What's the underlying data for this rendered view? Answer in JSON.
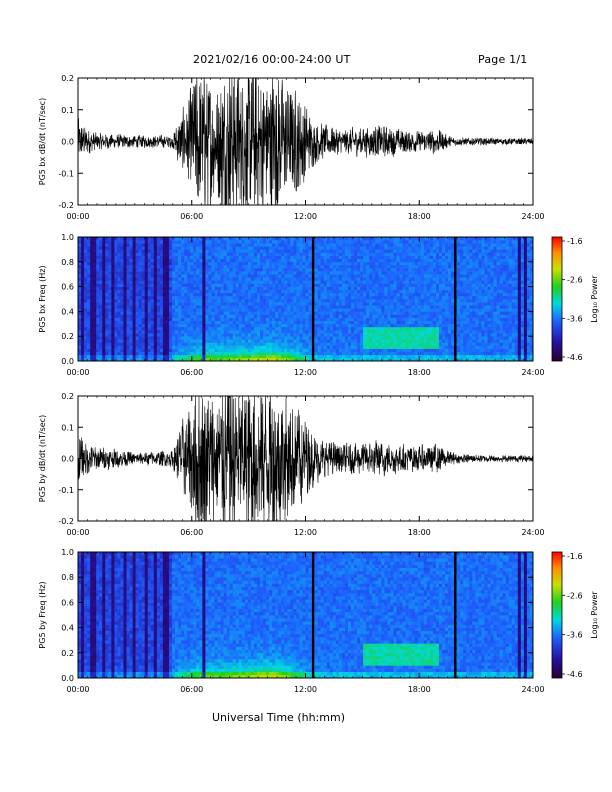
{
  "header": {
    "title": "2021/02/16  00:00-24:00 UT",
    "page": "Page 1/1"
  },
  "xaxis_title": "Universal Time (hh:mm)",
  "colorbar": {
    "label": "Log₁₀ Power",
    "ticks": [
      "-1.6",
      "-2.6",
      "-3.6",
      "-4.6"
    ]
  },
  "colors": {
    "trace": "#000000",
    "colormap": [
      "#2a002e",
      "#2410a0",
      "#1e60ff",
      "#00d8e0",
      "#20d020",
      "#c8e000",
      "#ff9000",
      "#ff0000"
    ]
  },
  "chart_data": [
    {
      "type": "line",
      "ylabel": "PG5 bx dB/dt (nT/sec)",
      "xlim": [
        0,
        24
      ],
      "ylim": [
        -0.2,
        0.2
      ],
      "xticks": [
        "00:00",
        "06:00",
        "12:00",
        "18:00",
        "24:00"
      ],
      "yticks": [
        "0.2",
        "0.1",
        "0.0",
        "-0.1",
        "-0.2"
      ],
      "envelope": {
        "x_hours": [
          0,
          0.3,
          1,
          3,
          5,
          5.3,
          5.8,
          6.3,
          6.8,
          7.3,
          7.7,
          8.2,
          8.6,
          9.0,
          9.5,
          10.0,
          10.4,
          10.8,
          11.3,
          11.8,
          12.3,
          13,
          14,
          15,
          16,
          17,
          18,
          19,
          19.5,
          20,
          22,
          24
        ],
        "amplitude": [
          0.06,
          0.04,
          0.02,
          0.015,
          0.015,
          0.06,
          0.1,
          0.19,
          0.17,
          0.14,
          0.19,
          0.2,
          0.16,
          0.2,
          0.18,
          0.17,
          0.2,
          0.15,
          0.13,
          0.12,
          0.06,
          0.04,
          0.03,
          0.035,
          0.04,
          0.03,
          0.025,
          0.03,
          0.015,
          0.01,
          0.008,
          0.008
        ]
      }
    },
    {
      "type": "heatmap",
      "ylabel": "PG5 bx Freq (Hz)",
      "xlim": [
        0,
        24
      ],
      "ylim": [
        0,
        1.0
      ],
      "zlim": [
        -4.6,
        -1.6
      ],
      "xticks": [
        "00:00",
        "06:00",
        "12:00",
        "18:00",
        "24:00"
      ],
      "yticks": [
        "1.0",
        "0.8",
        "0.6",
        "0.4",
        "0.2",
        "0.0"
      ],
      "data_gaps_hours": [
        12.4,
        19.9
      ],
      "dark_stripes_hours": [
        0.3,
        0.8,
        1.4,
        1.9,
        2.5,
        3.0,
        3.6,
        4.1,
        4.5,
        4.7,
        6.6,
        23.3,
        23.6
      ]
    },
    {
      "type": "line",
      "ylabel": "PG5 by dB/dt (nT/sec)",
      "xlim": [
        0,
        24
      ],
      "ylim": [
        -0.2,
        0.2
      ],
      "xticks": [
        "00:00",
        "06:00",
        "12:00",
        "18:00",
        "24:00"
      ],
      "yticks": [
        "0.2",
        "0.1",
        "0.0",
        "-0.1",
        "-0.2"
      ],
      "envelope": {
        "x_hours": [
          0,
          0.3,
          1,
          3,
          5,
          5.3,
          5.8,
          6.3,
          6.8,
          7.3,
          7.7,
          8.2,
          8.6,
          9.0,
          9.5,
          10.0,
          10.4,
          10.8,
          11.3,
          11.8,
          12.3,
          13,
          14,
          15,
          16,
          17,
          18,
          19,
          19.5,
          20,
          22,
          24
        ],
        "amplitude": [
          0.07,
          0.045,
          0.03,
          0.015,
          0.02,
          0.07,
          0.12,
          0.2,
          0.19,
          0.16,
          0.2,
          0.2,
          0.18,
          0.2,
          0.2,
          0.18,
          0.2,
          0.17,
          0.14,
          0.12,
          0.07,
          0.045,
          0.035,
          0.04,
          0.045,
          0.035,
          0.03,
          0.035,
          0.02,
          0.012,
          0.008,
          0.008
        ]
      }
    },
    {
      "type": "heatmap",
      "ylabel": "PG5 by Freq (Hz)",
      "xlim": [
        0,
        24
      ],
      "ylim": [
        0,
        1.0
      ],
      "zlim": [
        -4.6,
        -1.6
      ],
      "xticks": [
        "00:00",
        "06:00",
        "12:00",
        "18:00",
        "24:00"
      ],
      "yticks": [
        "1.0",
        "0.8",
        "0.6",
        "0.4",
        "0.2",
        "0.0"
      ],
      "data_gaps_hours": [
        12.4,
        19.9
      ],
      "dark_stripes_hours": [
        0.3,
        0.8,
        1.4,
        1.9,
        2.5,
        3.0,
        3.6,
        4.1,
        4.5,
        4.7,
        6.6,
        23.3,
        23.6
      ]
    }
  ]
}
